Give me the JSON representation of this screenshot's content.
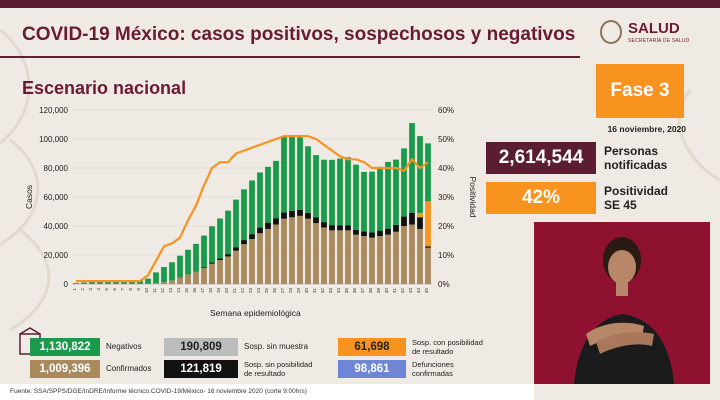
{
  "header": {
    "title": "COVID-19 México: casos positivos, sospechosos y negativos",
    "subtitle": "Escenario nacional",
    "logo_text": "SALUD",
    "logo_subtext": "SECRETARÍA DE SALUD"
  },
  "phase": {
    "label": "Fase 3",
    "date": "16 noviembre, 2020"
  },
  "stats": {
    "notified_value": "2,614,544",
    "notified_label_1": "Personas",
    "notified_label_2": "notificadas",
    "positivity_value": "42%",
    "positivity_label_1": "Positividad",
    "positivity_label_2": "SE 45"
  },
  "legend": {
    "negatives_value": "1,130,822",
    "negatives_label": "Negativos",
    "confirmed_value": "1,009,396",
    "confirmed_label": "Confirmados",
    "sosp_sin_muestra_value": "190,809",
    "sosp_sin_muestra_label": "Sosp. sin muestra",
    "sosp_sin_posibilidad_value": "121,819",
    "sosp_sin_posibilidad_label_1": "Sosp. sin posibilidad",
    "sosp_sin_posibilidad_label_2": "de resultado",
    "sosp_con_posibilidad_value": "61,698",
    "sosp_con_posibilidad_label_1": "Sosp. con posibilidad",
    "sosp_con_posibilidad_label_2": "de resultado",
    "defunciones_value": "98,861",
    "defunciones_label_1": "Defunciones",
    "defunciones_label_2": "confirmadas"
  },
  "source": "Fuente: SSA/SPPS/DGE/InDRE/Informe técnico.COVID-19/México- 16 noviembre 2020 (corte 9:00hrs)",
  "colors": {
    "maroon": "#5b1d31",
    "orange": "#f7931e",
    "green": "#1a9a4a",
    "tan": "#a88a5c",
    "black": "#111111",
    "gray": "#bdbdbd",
    "blue": "#6f86d6"
  },
  "chart_data": {
    "type": "bar",
    "xlabel": "Semana epidemiológica",
    "ylabel": "Casos",
    "y2label": "Positividad",
    "ylim": [
      0,
      120000
    ],
    "y2lim": [
      0,
      60
    ],
    "yticks": [
      "0",
      "20,000",
      "40,000",
      "60,000",
      "80,000",
      "100,000",
      "120,000"
    ],
    "y2ticks": [
      "0%",
      "10%",
      "20%",
      "30%",
      "40%",
      "50%",
      "60%"
    ],
    "categories": [
      "1",
      "2",
      "3",
      "4",
      "5",
      "6",
      "7",
      "8",
      "9",
      "10",
      "11",
      "12",
      "13",
      "14",
      "15",
      "16",
      "17",
      "18",
      "19",
      "20",
      "21",
      "22",
      "23",
      "24",
      "25",
      "26",
      "27",
      "28",
      "29",
      "30",
      "31",
      "32",
      "33",
      "34",
      "35",
      "36",
      "37",
      "38",
      "39",
      "40",
      "41",
      "42",
      "43",
      "44",
      "45"
    ],
    "series": [
      {
        "name": "Confirmados",
        "values": [
          0,
          0,
          0,
          0,
          0,
          0,
          0,
          0,
          0,
          100,
          500,
          1200,
          2500,
          4500,
          6500,
          8500,
          11000,
          14000,
          16500,
          19000,
          23000,
          27500,
          31000,
          35000,
          38000,
          41000,
          45000,
          46000,
          47000,
          45000,
          42000,
          39000,
          37000,
          37000,
          37000,
          34000,
          33000,
          32000,
          33000,
          34000,
          36000,
          40000,
          41000,
          38000,
          25000
        ]
      },
      {
        "name": "Sosp. sin posibilidad de resultado",
        "values": [
          0,
          0,
          0,
          0,
          0,
          0,
          0,
          0,
          0,
          0,
          0,
          0,
          0,
          0,
          100,
          200,
          400,
          800,
          1200,
          1600,
          2200,
          2800,
          3400,
          3900,
          4300,
          4400,
          4400,
          4400,
          4200,
          4000,
          3900,
          3700,
          3600,
          3500,
          3400,
          3300,
          3300,
          3500,
          3800,
          4200,
          4800,
          6500,
          8000,
          8000,
          1000
        ]
      },
      {
        "name": "Sosp. con posibilidad de resultado",
        "values": [
          0,
          0,
          0,
          0,
          0,
          0,
          0,
          0,
          0,
          0,
          0,
          0,
          0,
          0,
          0,
          0,
          0,
          0,
          0,
          0,
          0,
          0,
          0,
          0,
          0,
          0,
          0,
          0,
          0,
          0,
          0,
          0,
          0,
          0,
          0,
          0,
          0,
          0,
          0,
          0,
          0,
          0,
          0,
          3000,
          31000
        ]
      },
      {
        "name": "Negativos",
        "values": [
          600,
          1000,
          1400,
          1600,
          1800,
          2000,
          2200,
          2400,
          2600,
          3600,
          7500,
          10500,
          12500,
          15000,
          17000,
          19000,
          22000,
          25000,
          27500,
          30000,
          33000,
          35000,
          37000,
          38000,
          38500,
          39500,
          52000,
          52000,
          50000,
          46000,
          43000,
          43000,
          45000,
          46000,
          47000,
          45000,
          41000,
          42000,
          44000,
          46000,
          45000,
          47000,
          62000,
          53000,
          40000
        ]
      }
    ],
    "positivity": {
      "name": "Positividad",
      "values": [
        1,
        1,
        1,
        1,
        1,
        1,
        1,
        1,
        1,
        3,
        8,
        13,
        14,
        16,
        22,
        27,
        34,
        40,
        42,
        42,
        45,
        46,
        47,
        48,
        49,
        50,
        51,
        51,
        51,
        51,
        50,
        48,
        46,
        44,
        43,
        43,
        42,
        40,
        40,
        40,
        40,
        39,
        43,
        40,
        42
      ]
    }
  }
}
